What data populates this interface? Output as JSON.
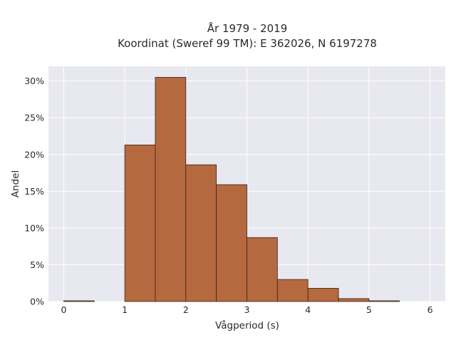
{
  "chart_data": {
    "type": "bar",
    "title": [
      "År 1979 - 2019",
      "Koordinat (Sweref 99 TM): E 362026, N 6197278"
    ],
    "xlabel": "Vågperiod (s)",
    "ylabel": "Andel",
    "x_bins": [
      [
        0.0,
        0.5
      ],
      [
        0.5,
        1.0
      ],
      [
        1.0,
        1.5
      ],
      [
        1.5,
        2.0
      ],
      [
        2.0,
        2.5
      ],
      [
        2.5,
        3.0
      ],
      [
        3.0,
        3.5
      ],
      [
        3.5,
        4.0
      ],
      [
        4.0,
        4.5
      ],
      [
        4.5,
        5.0
      ],
      [
        5.0,
        5.5
      ]
    ],
    "values": [
      0.1,
      0.0,
      21.3,
      30.5,
      18.6,
      15.9,
      8.7,
      3.0,
      1.8,
      0.4,
      0.1
    ],
    "xlim": [
      -0.25,
      6.25
    ],
    "ylim": [
      0,
      32
    ],
    "x_ticks": [
      0,
      1,
      2,
      3,
      4,
      5,
      6
    ],
    "y_ticks": [
      0,
      5,
      10,
      15,
      20,
      25,
      30
    ],
    "y_tick_labels": [
      "0%",
      "5%",
      "10%",
      "15%",
      "20%",
      "25%",
      "30%"
    ],
    "x_tick_labels": [
      "0",
      "1",
      "2",
      "3",
      "4",
      "5",
      "6"
    ],
    "grid": true,
    "colors": {
      "bar_fill": "#b5693e",
      "bar_stroke": "#3a2418",
      "plot_bg": "#e8e8f0",
      "grid": "#ffffff"
    }
  }
}
